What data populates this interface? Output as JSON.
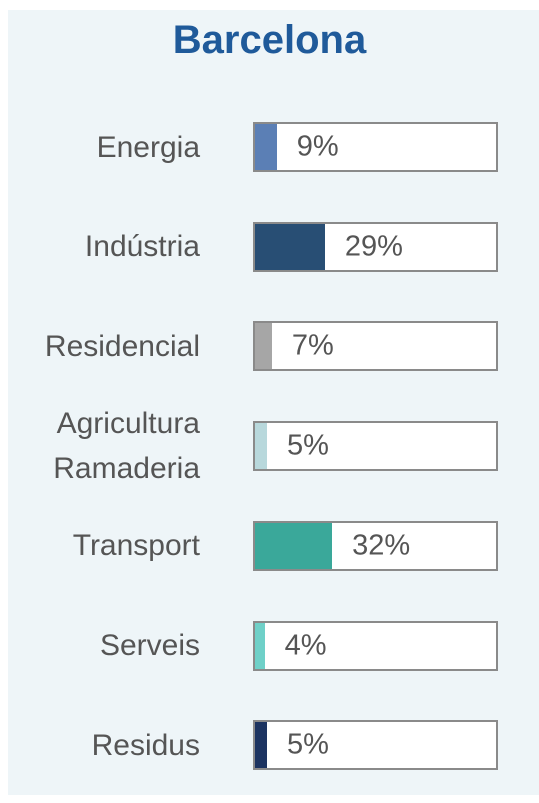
{
  "chart_data": {
    "type": "bar",
    "orientation": "horizontal",
    "title": "Barcelona",
    "categories": [
      "Energia",
      "Indústria",
      "Residencial",
      "Agricultura Ramaderia",
      "Transport",
      "Serveis",
      "Residus"
    ],
    "values": [
      9,
      29,
      7,
      5,
      32,
      4,
      5
    ],
    "value_labels": [
      "9%",
      "29%",
      "7%",
      "5%",
      "32%",
      "4%",
      "5%"
    ],
    "colors": [
      "#5b7fb5",
      "#284e74",
      "#a6a6a6",
      "#b8d8dc",
      "#3aa89a",
      "#6fd0c8",
      "#1c3461"
    ],
    "xlim": [
      0,
      100
    ]
  }
}
